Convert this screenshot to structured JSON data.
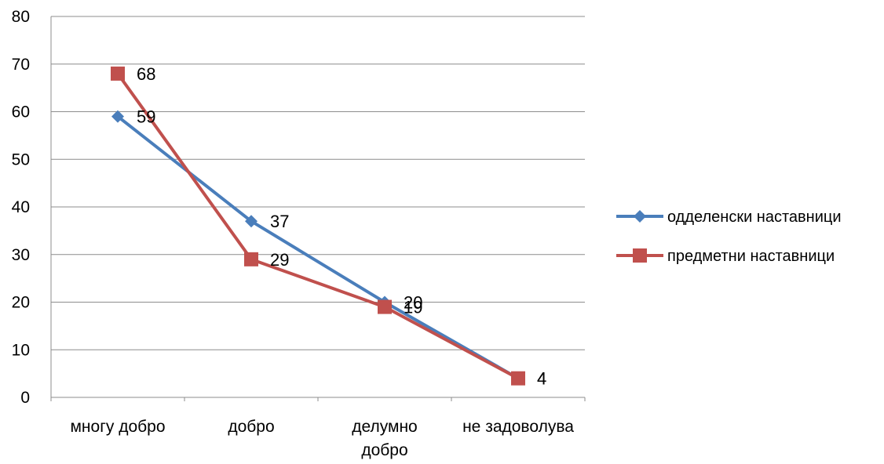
{
  "chart_data": {
    "type": "line",
    "title": "",
    "xlabel": "",
    "ylabel": "",
    "categories": [
      [
        "многу добро"
      ],
      [
        "добро"
      ],
      [
        "делумно",
        "добро"
      ],
      [
        "не задоволува"
      ]
    ],
    "ylim": [
      0,
      80
    ],
    "yticks": [
      0,
      10,
      20,
      30,
      40,
      50,
      60,
      70,
      80
    ],
    "grid": true,
    "legend_position": "right",
    "series": [
      {
        "name": "одделенски наставници",
        "values": [
          59,
          37,
          20,
          4
        ],
        "color": "#4a7ebb",
        "marker": "diamond"
      },
      {
        "name": "предметни наставници",
        "values": [
          68,
          29,
          19,
          4
        ],
        "color": "#c0504d",
        "marker": "square"
      }
    ]
  }
}
